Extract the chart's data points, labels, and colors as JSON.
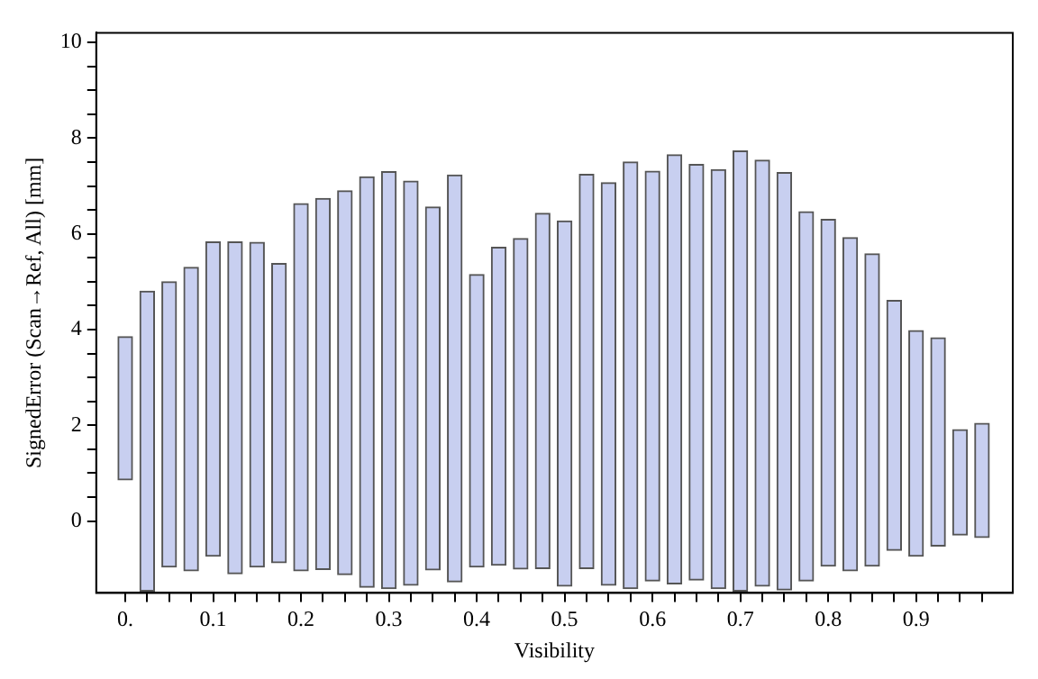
{
  "chart_data": {
    "type": "bar",
    "xlabel": "Visibility",
    "ylabel": "SignedError (Scan→Ref, All) [mm]",
    "x": [
      0,
      0.025,
      0.05,
      0.075,
      0.1,
      0.125,
      0.15,
      0.175,
      0.2,
      0.225,
      0.25,
      0.275,
      0.3,
      0.325,
      0.35,
      0.375,
      0.4,
      0.425,
      0.45,
      0.475,
      0.5,
      0.525,
      0.55,
      0.575,
      0.6,
      0.625,
      0.65,
      0.675,
      0.7,
      0.725,
      0.75,
      0.775,
      0.8,
      0.825,
      0.85,
      0.875,
      0.9,
      0.925,
      0.95,
      0.975
    ],
    "base": [
      0.86,
      -1.46,
      -0.96,
      -1.04,
      -0.73,
      -1.1,
      -0.96,
      -0.87,
      -1.04,
      -1.01,
      -1.12,
      -1.38,
      -1.41,
      -1.34,
      -1.02,
      -1.27,
      -0.96,
      -0.92,
      -1.0,
      -0.99,
      -1.36,
      -0.99,
      -1.34,
      -1.41,
      -1.25,
      -1.31,
      -1.23,
      -1.41,
      -1.46,
      -1.36,
      -1.44,
      -1.25,
      -0.94,
      -1.04,
      -0.94,
      -0.61,
      -0.73,
      -0.52,
      -0.29,
      -0.34
    ],
    "values": [
      2.99,
      6.26,
      5.96,
      6.34,
      6.56,
      6.93,
      6.78,
      6.25,
      7.67,
      7.75,
      8.02,
      8.57,
      8.71,
      8.44,
      7.58,
      8.5,
      6.11,
      6.64,
      6.9,
      7.42,
      7.63,
      8.23,
      8.41,
      8.91,
      8.56,
      8.96,
      8.68,
      8.75,
      9.19,
      8.9,
      8.72,
      7.71,
      7.24,
      6.96,
      6.52,
      5.22,
      4.71,
      4.35,
      2.2,
      2.38
    ],
    "color": "#c8cff0",
    "xlim": [
      -0.033,
      1.01
    ],
    "ylim": [
      -1.5,
      10.2
    ],
    "xticks": [
      {
        "value": 0,
        "label": "0."
      },
      {
        "value": 0.025,
        "label": null
      },
      {
        "value": 0.05,
        "label": null
      },
      {
        "value": 0.075,
        "label": null
      },
      0.1,
      {
        "value": 0.125,
        "label": null
      },
      {
        "value": 0.15,
        "label": null
      },
      {
        "value": 0.175,
        "label": null
      },
      0.2,
      {
        "value": 0.225,
        "label": null
      },
      {
        "value": 0.25,
        "label": null
      },
      {
        "value": 0.275,
        "label": null
      },
      0.3,
      {
        "value": 0.325,
        "label": null
      },
      {
        "value": 0.35,
        "label": null
      },
      {
        "value": 0.375,
        "label": null
      },
      0.4,
      {
        "value": 0.425,
        "label": null
      },
      {
        "value": 0.45,
        "label": null
      },
      {
        "value": 0.475,
        "label": null
      },
      0.5,
      {
        "value": 0.525,
        "label": null
      },
      {
        "value": 0.55,
        "label": null
      },
      {
        "value": 0.575,
        "label": null
      },
      0.6,
      {
        "value": 0.625,
        "label": null
      },
      {
        "value": 0.65,
        "label": null
      },
      {
        "value": 0.675,
        "label": null
      },
      0.7,
      {
        "value": 0.725,
        "label": null
      },
      {
        "value": 0.75,
        "label": null
      },
      {
        "value": 0.775,
        "label": null
      },
      0.8,
      {
        "value": 0.825,
        "label": null
      },
      {
        "value": 0.85,
        "label": null
      },
      {
        "value": 0.875,
        "label": null
      },
      0.9,
      {
        "value": 0.925,
        "label": null
      },
      {
        "value": 0.95,
        "label": null
      },
      {
        "value": 0.975,
        "label": null
      }
    ],
    "yticks": [
      0,
      {
        "value": 0.5,
        "label": null
      },
      {
        "value": 1,
        "label": null
      },
      {
        "value": 1.5,
        "label": null
      },
      2,
      {
        "value": 2.5,
        "label": null
      },
      {
        "value": 3,
        "label": null
      },
      {
        "value": 3.5,
        "label": null
      },
      4,
      {
        "value": 4.5,
        "label": null
      },
      {
        "value": 5,
        "label": null
      },
      {
        "value": 5.5,
        "label": null
      },
      6,
      {
        "value": 6.5,
        "label": null
      },
      {
        "value": 7,
        "label": null
      },
      {
        "value": 7.5,
        "label": null
      },
      8,
      {
        "value": 8.5,
        "label": null
      },
      {
        "value": 9,
        "label": null
      },
      {
        "value": 9.5,
        "label": null
      },
      10
    ],
    "grid": false,
    "legend": false
  }
}
